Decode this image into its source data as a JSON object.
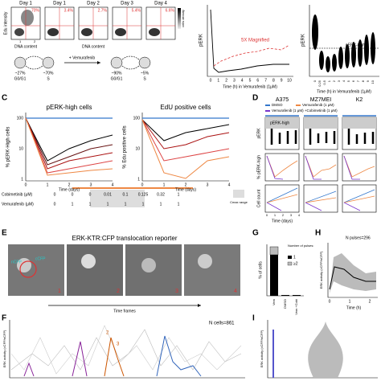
{
  "panel_labels": [
    "C",
    "D",
    "E",
    "F",
    "G",
    "H",
    "I"
  ],
  "panel_a": {
    "days": [
      "Day 1",
      "Day 1",
      "Day 2",
      "Day 3",
      "Day 4"
    ],
    "percents": [
      "70%",
      "3.4%",
      "2.7%",
      "5.4%",
      "6.6%"
    ],
    "y_label": "Edu intensity",
    "x_label": "DNA content",
    "x_label_2": "DNA content",
    "density": "cells density",
    "ticks": [
      "1",
      "2"
    ],
    "cycle": [
      {
        "pct": "~27%",
        "phase": "G0/G1"
      },
      {
        "pct": "~70%",
        "phase": "S"
      },
      {
        "pct": "~90%",
        "phase": "G0/G1"
      },
      {
        "pct": "~5%",
        "phase": "S"
      }
    ],
    "treatment": "+ Vemurafenib"
  },
  "panel_b": {
    "y_label": "pERK",
    "annotation": "5X Magnified",
    "xticks": [
      "0",
      "1",
      "2",
      "3",
      "4",
      "5",
      "6",
      "7",
      "8",
      "9",
      "10"
    ],
    "x_label": "Time (h) in Vemurafenib (1μM)"
  },
  "panel_b2": {
    "y_label": "pERK",
    "gate": "pERK-high",
    "xticks": [
      "0",
      "0.25",
      "0.5",
      "1",
      "2",
      "3",
      "4",
      "5",
      "6",
      "7",
      "8",
      "9",
      "10"
    ],
    "x_label": "Time (h) in Vemurafenib (1μM)"
  },
  "panel_c": {
    "titles": [
      "pERK-high cells",
      "EdU positive cells"
    ],
    "y_labels": [
      "% pERK-High cells",
      "% Edu positive cells"
    ],
    "yticks": [
      "100",
      "10",
      "1"
    ],
    "xticks": [
      "0",
      "1",
      "2",
      "3",
      "4"
    ],
    "x_label": "Time (days)",
    "rows": [
      {
        "name": "Cobimetinib (μM)",
        "values": [
          "0",
          "0",
          "0",
          "0.01",
          "0.1",
          "0.125",
          "0.32",
          "1"
        ]
      },
      {
        "name": "Vemurafenib (μM)",
        "values": [
          "0",
          "1",
          "1",
          "1",
          "1",
          "1",
          "1",
          "1"
        ]
      }
    ],
    "cmax": "Cmax range"
  },
  "panel_d": {
    "columns": [
      "A375",
      "MZ7MEI",
      "K2"
    ],
    "legend": [
      "DMSO",
      "Vemurafenib (1 μM)",
      "Vemurafenib (1 μM) +Cobimetinib (1 μM)"
    ],
    "rows": [
      "pERK",
      "% pERK-high",
      "Cell count"
    ],
    "gate": "pERK-high",
    "x_label": "Time (days)",
    "xticks": [
      "0",
      "1",
      "2",
      "3",
      "4"
    ]
  },
  "panel_e": {
    "title": "ERK-KTR:CFP translocation reporter",
    "markers": [
      "nCFP",
      "cCFP"
    ],
    "frames": [
      "1",
      "2",
      "3",
      "4"
    ],
    "x_label": "Time frames"
  },
  "panel_g": {
    "y_label": "% of cells",
    "legend_title": "Number of pulses:",
    "legend": [
      "1",
      "≥2"
    ],
    "categories": [
      "Vem",
      "DMSO",
      "Vem +Cobi"
    ]
  },
  "panel_h": {
    "annotation": "N pulses=296",
    "y_label": "ERK activity (cCFP/nCFP)",
    "x_label": "Time (h)",
    "xticks": [
      "0",
      "1",
      "2"
    ]
  },
  "panel_f": {
    "annotation": "N cells=861",
    "y_label": "ERK activity (cCFP/nCFP)",
    "markers": [
      "2",
      "3"
    ]
  },
  "panel_i": {
    "y_label": "ERK activity (cCFP/nCFP)"
  }
}
